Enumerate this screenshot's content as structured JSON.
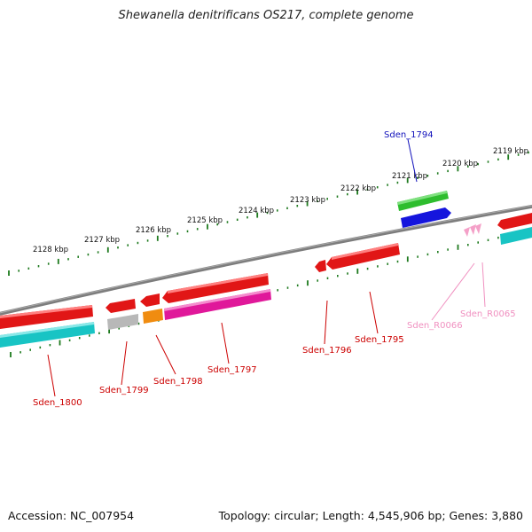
{
  "title": "Shewanella denitrificans OS217, complete genome",
  "footer": {
    "accession": "Accession: NC_007954",
    "summary": "Topology: circular; Length: 4,545,906 bp; Genes: 3,880"
  },
  "colors": {
    "backbone": "#7a7a7a",
    "tick": "#1e7a1e",
    "cds_red": "#e11616",
    "cds_cyan": "#18c4c4",
    "cds_green": "#2ebd2e",
    "cds_blue": "#1515dd",
    "cds_gray": "#b8b8b8",
    "cds_orange": "#f08c10",
    "cds_magenta": "#e0189a",
    "rna_pink": "#f4a0c8",
    "label_red": "#cc0000",
    "label_blue": "#1010bb",
    "label_pink": "#f090c0"
  },
  "kbp_ticks": [
    "2128 kbp",
    "2127 kbp",
    "2126 kbp",
    "2125 kbp",
    "2124 kbp",
    "2123 kbp",
    "2122 kbp",
    "2121 kbp",
    "2120 kbp",
    "2119 kbp"
  ],
  "gene_labels": [
    "Sden_1800",
    "Sden_1799",
    "Sden_1798",
    "Sden_1797",
    "Sden_1796",
    "Sden_1795",
    "Sden_1794",
    "Sden_R0066",
    "Sden_R0065"
  ]
}
